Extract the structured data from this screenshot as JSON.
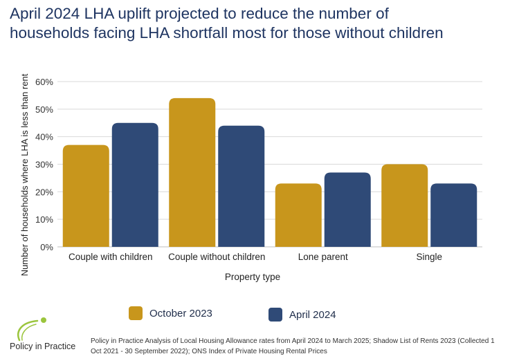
{
  "title_lines": [
    "April 2024 LHA uplift projected to reduce the number of",
    "households facing LHA shortfall most for those without children"
  ],
  "chart_data": {
    "type": "bar",
    "categories": [
      "Couple with children",
      "Couple without children",
      "Lone parent",
      "Single"
    ],
    "series": [
      {
        "name": "October 2023",
        "values": [
          37,
          54,
          23,
          30
        ],
        "color": "#c8961c"
      },
      {
        "name": "April 2024",
        "values": [
          45,
          44,
          27,
          23
        ],
        "color": "#2f4a77"
      }
    ],
    "xlabel": "Property type",
    "ylabel": "Number of households where LHA is less than rent",
    "ylim": [
      0,
      60
    ],
    "yticks": [
      "0%",
      "10%",
      "20%",
      "30%",
      "40%",
      "50%",
      "60%"
    ],
    "grid": true,
    "legend_position": "bottom"
  },
  "logo": {
    "text": "Policy in Practice",
    "color": "#9bc53d"
  },
  "source": "Policy in Practice Analysis of Local Housing Allowance rates from April 2024 to March 2025; Shadow List of Rents 2023 (Collected 1 Oct 2021 - 30 September 2022); ONS Index of Private Housing Rental Prices"
}
